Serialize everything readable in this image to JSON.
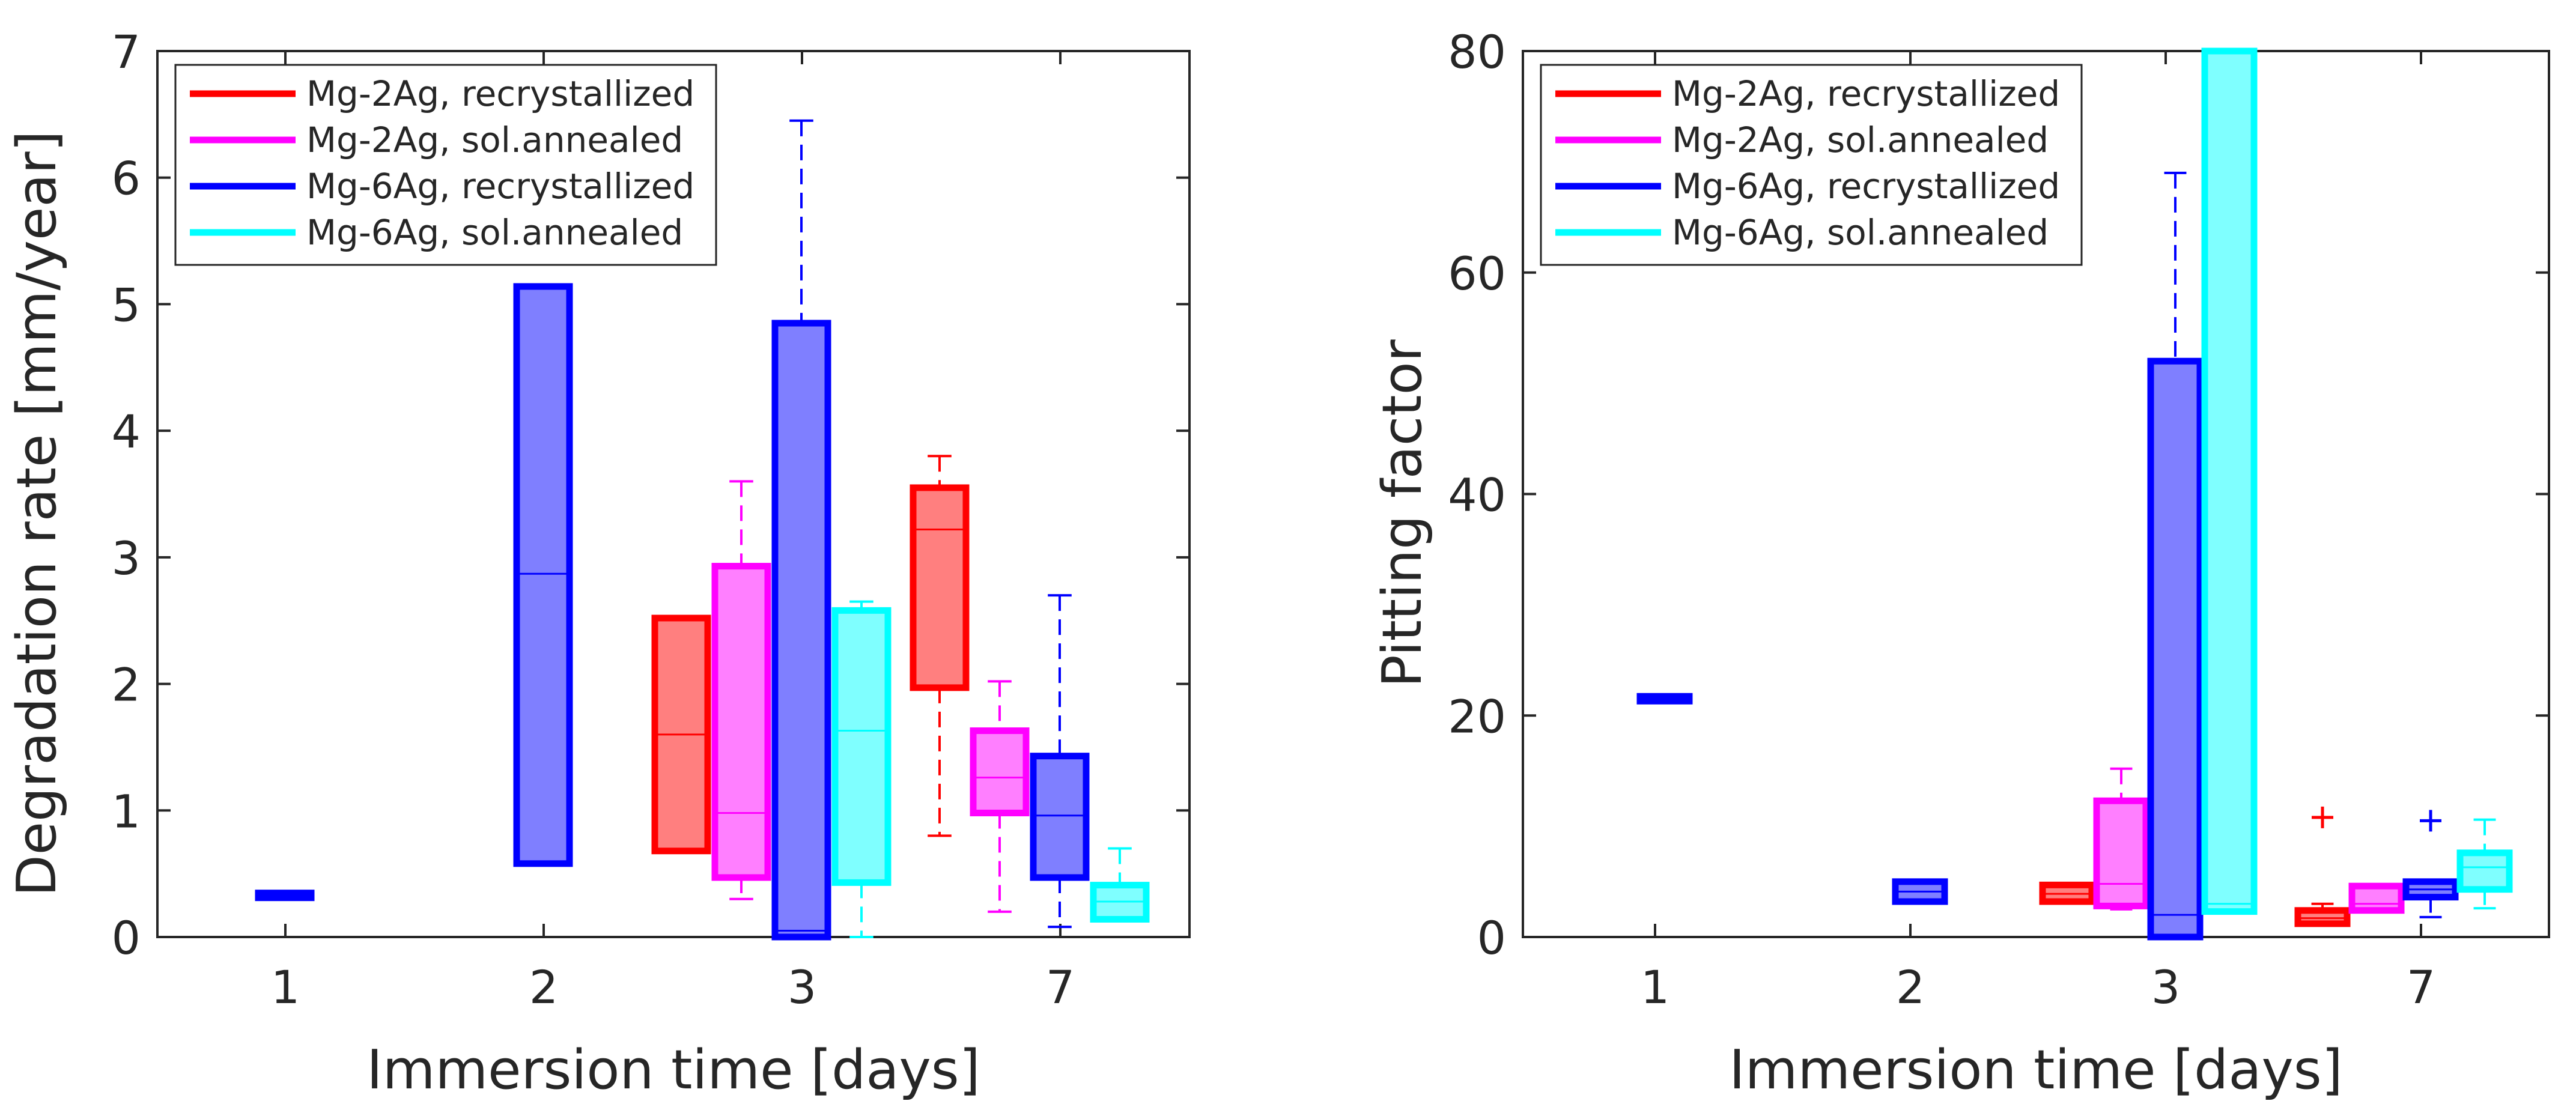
{
  "chart_data": [
    {
      "type": "boxplot",
      "ylabel": "Degradation rate [mm/year]",
      "xlabel": "Immersion time [days]",
      "ylim": [
        0,
        7
      ],
      "yticks": [
        0,
        1,
        2,
        3,
        4,
        5,
        6,
        7
      ],
      "categories": [
        "1",
        "2",
        "3",
        "7"
      ],
      "grid": false,
      "legend_position": "top-left",
      "series": [
        {
          "name": "Mg-2Ag, recrystallized",
          "color": "#ff0000",
          "fill": "#ff7f7f",
          "boxes": [
            {
              "day": "3",
              "q1": 0.68,
              "median": 1.6,
              "q3": 2.52
            },
            {
              "day": "7",
              "q1": 1.97,
              "median": 3.22,
              "q3": 3.55,
              "whisker_low": 0.8,
              "whisker_high": 3.8
            }
          ]
        },
        {
          "name": "Mg-2Ag, sol.annealed",
          "color": "#ff00ff",
          "fill": "#ff7fff",
          "boxes": [
            {
              "day": "3",
              "q1": 0.47,
              "median": 0.98,
              "q3": 2.93,
              "whisker_low": 0.3,
              "whisker_high": 3.6
            },
            {
              "day": "7",
              "q1": 0.98,
              "median": 1.26,
              "q3": 1.63,
              "whisker_low": 0.2,
              "whisker_high": 2.02
            }
          ]
        },
        {
          "name": "Mg-6Ag, recrystallized",
          "color": "#0000ff",
          "fill": "#7f7fff",
          "boxes": [
            {
              "day": "1",
              "q1": 0.31,
              "median": 0.32,
              "q3": 0.33
            },
            {
              "day": "2",
              "q1": 0.58,
              "median": 2.87,
              "q3": 5.14
            },
            {
              "day": "3",
              "q1": 0.0,
              "median": 0.05,
              "q3": 4.85,
              "whisker_high": 6.45
            },
            {
              "day": "7",
              "q1": 0.47,
              "median": 0.96,
              "q3": 1.43,
              "whisker_low": 0.08,
              "whisker_high": 2.7
            }
          ]
        },
        {
          "name": "Mg-6Ag, sol.annealed",
          "color": "#00ffff",
          "fill": "#7fffff",
          "boxes": [
            {
              "day": "3",
              "q1": 0.43,
              "median": 1.63,
              "q3": 2.58,
              "whisker_low": 0.0,
              "whisker_high": 2.65
            },
            {
              "day": "7",
              "q1": 0.14,
              "median": 0.28,
              "q3": 0.41,
              "whisker_low": 0.14,
              "whisker_high": 0.7
            }
          ]
        }
      ]
    },
    {
      "type": "boxplot",
      "ylabel": "Pitting factor",
      "xlabel": "Immersion time [days]",
      "ylim": [
        0,
        80
      ],
      "yticks": [
        0,
        20,
        40,
        60,
        80
      ],
      "categories": [
        "1",
        "2",
        "3",
        "7"
      ],
      "grid": false,
      "legend_position": "top-left",
      "series": [
        {
          "name": "Mg-2Ag, recrystallized",
          "color": "#ff0000",
          "fill": "#ff7f7f",
          "boxes": [
            {
              "day": "3",
              "q1": 3.2,
              "median": 3.9,
              "q3": 4.7
            },
            {
              "day": "7",
              "q1": 1.2,
              "median": 1.7,
              "q3": 2.4,
              "whisker_low": 1.2,
              "whisker_high": 3.0,
              "outliers": [
                10.8
              ]
            }
          ]
        },
        {
          "name": "Mg-2Ag, sol.annealed",
          "color": "#ff00ff",
          "fill": "#ff7fff",
          "boxes": [
            {
              "day": "3",
              "q1": 2.8,
              "median": 4.8,
              "q3": 12.3,
              "whisker_low": 2.5,
              "whisker_high": 15.2
            },
            {
              "day": "7",
              "q1": 2.4,
              "median": 3.0,
              "q3": 4.6
            }
          ]
        },
        {
          "name": "Mg-6Ag, recrystallized",
          "color": "#0000ff",
          "fill": "#7f7fff",
          "boxes": [
            {
              "day": "1",
              "q1": 21.3,
              "median": 21.5,
              "q3": 21.7
            },
            {
              "day": "2",
              "q1": 3.2,
              "median": 4.1,
              "q3": 5.0
            },
            {
              "day": "3",
              "q1": 0.0,
              "median": 2.0,
              "q3": 52.0,
              "whisker_high": 69.0
            },
            {
              "day": "7",
              "q1": 3.6,
              "median": 4.3,
              "q3": 5.0,
              "whisker_low": 1.8,
              "whisker_high": 5.0,
              "outliers": [
                10.5
              ]
            }
          ]
        },
        {
          "name": "Mg-6Ag, sol.annealed",
          "color": "#00ffff",
          "fill": "#7fffff",
          "boxes": [
            {
              "day": "3",
              "q1": 2.3,
              "median": 3.0,
              "q3": 80.0
            },
            {
              "day": "7",
              "q1": 4.3,
              "median": 6.3,
              "q3": 7.6,
              "whisker_low": 2.6,
              "whisker_high": 10.6
            }
          ]
        }
      ]
    }
  ]
}
